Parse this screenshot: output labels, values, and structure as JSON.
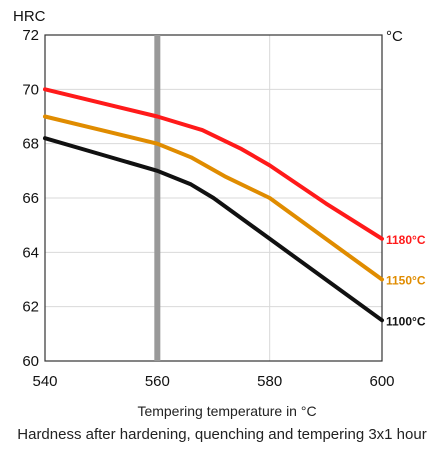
{
  "chart_data": {
    "type": "line",
    "y_unit": "HRC",
    "right_unit": "°C",
    "xlabel": "Tempering temperature in °C",
    "caption": "Hardness after hardening, quenching and tempering  3x1 hour",
    "xlim": [
      540,
      600
    ],
    "ylim": [
      60,
      72
    ],
    "xticks": [
      "540",
      "560",
      "580",
      "600"
    ],
    "yticks": [
      "60",
      "62",
      "64",
      "66",
      "68",
      "70",
      "72"
    ],
    "xtick_values": [
      540,
      560,
      580,
      600
    ],
    "ytick_values": [
      60,
      62,
      64,
      66,
      68,
      70,
      72
    ],
    "grid": true,
    "reference_line_x": 560,
    "reference_color": "#999999",
    "series": [
      {
        "name": "1180°C",
        "color": "#ff1a1a",
        "x": [
          540,
          550,
          560,
          568,
          575,
          580,
          590,
          600
        ],
        "y": [
          70.0,
          69.5,
          69.0,
          68.5,
          67.8,
          67.2,
          65.8,
          64.5
        ]
      },
      {
        "name": "1150°C",
        "color": "#e08c00",
        "x": [
          540,
          550,
          560,
          566,
          572,
          580,
          590,
          600
        ],
        "y": [
          69.0,
          68.5,
          68.0,
          67.5,
          66.8,
          66.0,
          64.5,
          63.0
        ]
      },
      {
        "name": "1100°C",
        "color": "#111111",
        "x": [
          540,
          550,
          560,
          566,
          570,
          580,
          590,
          600
        ],
        "y": [
          68.2,
          67.6,
          67.0,
          66.5,
          66.0,
          64.5,
          63.0,
          61.5
        ]
      }
    ]
  }
}
